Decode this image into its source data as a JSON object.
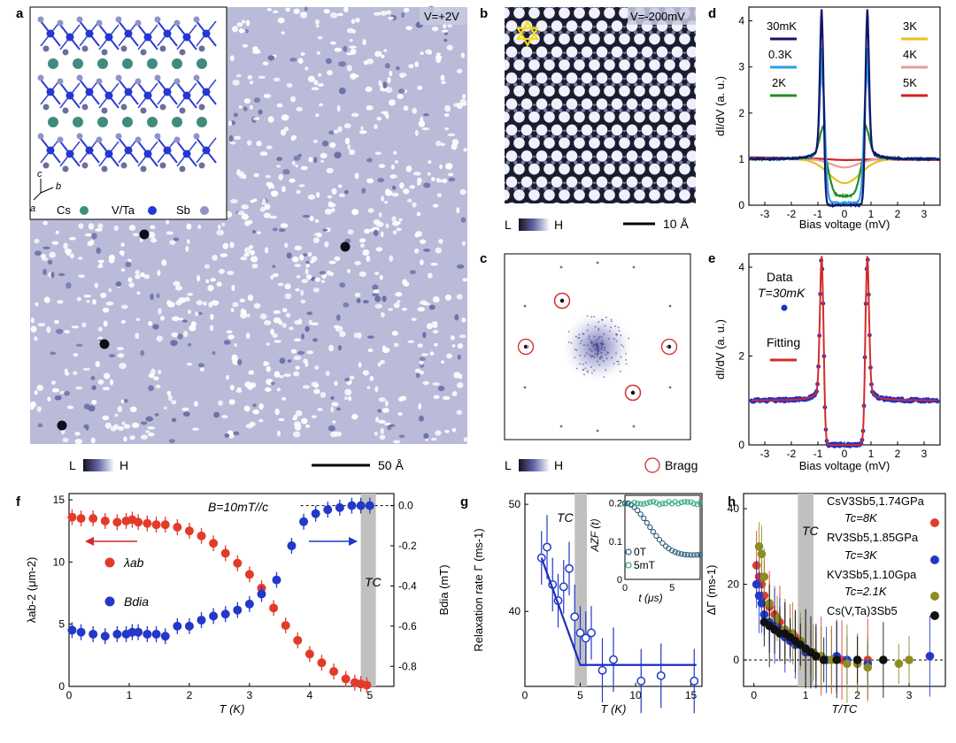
{
  "colors": {
    "cold": "#1e2a8a",
    "stm_base": "#b9bbd9",
    "stm_light": "#ffffff",
    "stm_dark": "#101012",
    "bragg": "#d42a2a",
    "fit_red": "#d42a2a",
    "data_blue": "#1f32c8",
    "gray_band": "#c0c0c0",
    "muon_teal": "#34a882",
    "muon_navy": "#2b5d7a",
    "red_pts": "#e33b2a",
    "olive_pts": "#8c8c22"
  },
  "panels": {
    "a": {
      "label": "a",
      "bias": "V=+2V",
      "scale": "50 Å",
      "L": "L",
      "H": "H",
      "inset": {
        "axes": [
          "c",
          "b",
          "a"
        ],
        "legend": [
          {
            "name": "Cs",
            "color": "#3f8c7f"
          },
          {
            "name": "V/Ta",
            "color": "#2338d2"
          },
          {
            "name": "Sb",
            "color": "#8f93c8"
          }
        ]
      }
    },
    "b": {
      "label": "b",
      "bias": "V=-200mV",
      "scale": "10 Å",
      "L": "L",
      "H": "H"
    },
    "c": {
      "label": "c",
      "L": "L",
      "H": "H",
      "bragg": "Bragg"
    },
    "d": {
      "label": "d",
      "ylabel": "dI/dV (a. u.)",
      "xlabel": "Bias voltage (mV)",
      "legend": [
        {
          "name": "30mK",
          "color": "#14156a"
        },
        {
          "name": "0.3K",
          "color": "#2ba0e6"
        },
        {
          "name": "2K",
          "color": "#248c28"
        },
        {
          "name": "3K",
          "color": "#e8c020"
        },
        {
          "name": "4K",
          "color": "#ee9999"
        },
        {
          "name": "5K",
          "color": "#d32020"
        }
      ]
    },
    "e": {
      "label": "e",
      "ylabel": "dI/dV (a. u.)",
      "xlabel": "Bias voltage (mV)",
      "data": "Data",
      "temp": "T=30mK",
      "fit": "Fitting"
    },
    "f": {
      "label": "f",
      "field": "B=10mT//c",
      "ylabel_left": "λab-2 (μm-2)",
      "ylabel_right": "Bdia (mT)",
      "xlabel": "T (K)",
      "tc": "TC",
      "lam": "λab",
      "bdia": "Bdia"
    },
    "g": {
      "label": "g",
      "ylabel": "Relaxation rate Γ (ms-1)",
      "xlabel": "T (K)",
      "tc": "TC",
      "inset": {
        "ylabel": "AZF (t)",
        "xlabel": "t (μs)",
        "legend": [
          "0T",
          "5mT"
        ]
      }
    },
    "h": {
      "label": "h",
      "ylabel": "ΔΓ (ms-1)",
      "xlabel": "T/TC",
      "tc": "TC",
      "legend": [
        "CsV3Sb5,1.74GPa",
        "Tc=8K",
        "RV3Sb5,1.85GPa",
        "Tc=3K",
        "KV3Sb5,1.10Gpa",
        "Tc=2.1K",
        "Cs(V,Ta)3Sb5"
      ]
    }
  },
  "chart_data": [
    {
      "panel": "d",
      "type": "line",
      "xlabel": "Bias voltage (mV)",
      "ylabel": "dI/dV (a. u.)",
      "xlim": [
        -3.6,
        3.6
      ],
      "ylim": [
        0,
        4.3
      ],
      "xticks": [
        -3,
        -2,
        -1,
        0,
        1,
        2,
        3
      ],
      "yticks": [
        0,
        1,
        2,
        3,
        4
      ],
      "series": [
        {
          "name": "30mK",
          "delta": 0.85,
          "peak": 4.1,
          "floor": 0.0,
          "dip": 0.0,
          "width": 0.1
        },
        {
          "name": "0.3K",
          "delta": 0.82,
          "peak": 3.3,
          "floor": 0.05,
          "dip": 0.05,
          "width": 0.13
        },
        {
          "name": "2K",
          "delta": 0.75,
          "peak": 1.7,
          "floor": 0.2,
          "dip": 0.25,
          "width": 0.25
        },
        {
          "name": "3K",
          "delta": 0.6,
          "peak": 1.2,
          "floor": 0.48,
          "dip": 0.48,
          "width": 0.45
        },
        {
          "name": "4K",
          "delta": 0.5,
          "peak": 1.05,
          "floor": 0.82,
          "dip": 0.82,
          "width": 0.6
        },
        {
          "name": "5K",
          "delta": 0.5,
          "peak": 1.0,
          "floor": 1.0,
          "dip": 0.98,
          "width": 0.6
        }
      ]
    },
    {
      "panel": "e",
      "type": "scatter",
      "xlabel": "Bias voltage (mV)",
      "ylabel": "dI/dV (a. u.)",
      "xlim": [
        -3.6,
        3.6
      ],
      "ylim": [
        0,
        4.3
      ],
      "xticks": [
        -3,
        -2,
        -1,
        0,
        1,
        2,
        3
      ],
      "yticks": [
        0,
        2,
        4
      ],
      "series": [
        {
          "name": "Data",
          "delta": 0.85,
          "peak": 4.1
        },
        {
          "name": "Fitting",
          "delta": 0.85,
          "peak": 4.1
        }
      ]
    },
    {
      "panel": "f",
      "type": "scatter",
      "xlabel": "T (K)",
      "xlim": [
        0,
        5.4
      ],
      "xticks": [
        0,
        1,
        2,
        3,
        4,
        5
      ],
      "left": {
        "ylabel": "λab-2 (μm-2)",
        "ylim": [
          0,
          15.5
        ],
        "yticks": [
          0,
          5,
          10,
          15
        ]
      },
      "right": {
        "ylabel": "Bdia (mT)",
        "ylim": [
          -0.9,
          0.06
        ],
        "yticks": [
          0.0,
          -0.2,
          -0.4,
          -0.6,
          -0.8
        ]
      },
      "series": [
        {
          "name": "λab",
          "axis": "left",
          "x": [
            0.05,
            0.2,
            0.4,
            0.6,
            0.8,
            0.95,
            1.05,
            1.15,
            1.3,
            1.45,
            1.6,
            1.8,
            2.0,
            2.2,
            2.4,
            2.6,
            2.8,
            3.0,
            3.2,
            3.4,
            3.6,
            3.8,
            4.0,
            4.2,
            4.4,
            4.6,
            4.75,
            4.85,
            4.95
          ],
          "y": [
            13.6,
            13.5,
            13.5,
            13.3,
            13.2,
            13.3,
            13.4,
            13.2,
            13.1,
            13.0,
            13.0,
            12.8,
            12.5,
            12.1,
            11.5,
            10.7,
            9.9,
            9.0,
            7.9,
            6.3,
            4.9,
            3.7,
            2.6,
            1.9,
            1.2,
            0.6,
            0.3,
            0.2,
            0.1
          ]
        },
        {
          "name": "Bdia",
          "axis": "right",
          "x": [
            0.05,
            0.2,
            0.4,
            0.6,
            0.8,
            0.95,
            1.05,
            1.15,
            1.3,
            1.45,
            1.6,
            1.8,
            2.0,
            2.2,
            2.4,
            2.6,
            2.8,
            3.0,
            3.2,
            3.45,
            3.7,
            3.9,
            4.1,
            4.3,
            4.5,
            4.7,
            4.85,
            5.0
          ],
          "y": [
            -0.62,
            -0.63,
            -0.64,
            -0.65,
            -0.64,
            -0.64,
            -0.63,
            -0.63,
            -0.64,
            -0.64,
            -0.65,
            -0.6,
            -0.6,
            -0.57,
            -0.55,
            -0.54,
            -0.52,
            -0.49,
            -0.44,
            -0.37,
            -0.2,
            -0.08,
            -0.04,
            -0.02,
            -0.01,
            0.0,
            0.0,
            0.0
          ]
        }
      ]
    },
    {
      "panel": "g",
      "type": "scatter",
      "xlabel": "T (K)",
      "ylabel": "Relaxation rate Γ (ms-1)",
      "xlim": [
        0,
        16
      ],
      "ylim": [
        33,
        51
      ],
      "xticks": [
        0,
        5,
        10,
        15
      ],
      "yticks": [
        40,
        50
      ],
      "series": [
        {
          "name": "Γ",
          "x": [
            1.5,
            2.0,
            2.5,
            3.0,
            3.5,
            4.0,
            4.5,
            5.0,
            5.5,
            6.0,
            7.0,
            8.0,
            10.5,
            12.3,
            15.3
          ],
          "y": [
            45,
            46,
            42.5,
            41,
            42.3,
            44,
            39.5,
            38,
            37.5,
            38,
            34.5,
            35.5,
            33.5,
            34,
            33.5
          ],
          "err": [
            2.5,
            3,
            2.5,
            2.5,
            2.5,
            2.5,
            3,
            2.5,
            2.5,
            2.5,
            3,
            3,
            3,
            3,
            3
          ]
        },
        {
          "name": "fit",
          "x": [
            1.5,
            5,
            15.5
          ],
          "y": [
            45,
            35,
            35
          ]
        }
      ]
    },
    {
      "panel": "g_inset",
      "type": "scatter",
      "xlabel": "t (μs)",
      "ylabel": "AZF (t)",
      "xlim": [
        0,
        8
      ],
      "ylim": [
        0,
        0.22
      ],
      "xticks": [
        0,
        5
      ],
      "yticks": [
        0,
        0.1,
        0.2
      ],
      "series": [
        {
          "name": "0T",
          "decay": "gaussian"
        },
        {
          "name": "5mT",
          "decay": "flat"
        }
      ]
    },
    {
      "panel": "h",
      "type": "scatter",
      "xlabel": "T/TC",
      "ylabel": "ΔΓ (ms-1)",
      "xlim": [
        -0.2,
        3.7
      ],
      "ylim": [
        -7,
        44
      ],
      "xticks": [
        0,
        1,
        2,
        3
      ],
      "yticks": [
        0,
        20,
        40
      ],
      "series": [
        {
          "name": "CsV3Sb5,1.74GPa",
          "x": [
            0.05,
            0.1,
            0.15,
            0.2,
            0.3,
            0.4,
            0.5,
            0.6,
            0.7,
            0.8,
            0.9,
            1.0,
            1.1,
            1.2,
            1.3,
            1.5,
            1.7,
            2.0,
            2.2
          ],
          "y": [
            25,
            22,
            20,
            17,
            14,
            12,
            10,
            8,
            7,
            6,
            5,
            3,
            2,
            1,
            1,
            0,
            0,
            -1,
            0
          ]
        },
        {
          "name": "RV3Sb5,1.85GPa",
          "x": [
            0.05,
            0.1,
            0.15,
            0.2,
            0.3,
            0.4,
            0.5,
            0.6,
            0.7,
            0.8,
            1.0,
            1.2,
            1.4,
            1.6,
            1.8,
            2.2,
            3.4
          ],
          "y": [
            20,
            17,
            15,
            12,
            10,
            9,
            8,
            6,
            5,
            4,
            2,
            1,
            0,
            1,
            0,
            -1,
            1
          ]
        },
        {
          "name": "KV3Sb5,1.10Gpa",
          "x": [
            0.1,
            0.15,
            0.2,
            0.3,
            0.45,
            0.6,
            0.75,
            0.9,
            1.0,
            1.15,
            1.3,
            1.5,
            1.8,
            2.0,
            2.2,
            2.8,
            3.0
          ],
          "y": [
            30,
            28,
            22,
            15,
            11,
            8,
            7,
            5,
            3,
            2,
            1,
            0,
            -1,
            -1,
            -2,
            -1,
            0
          ]
        },
        {
          "name": "Cs(V,Ta)3Sb5",
          "x": [
            0.2,
            0.3,
            0.4,
            0.5,
            0.6,
            0.7,
            0.8,
            0.9,
            1.0,
            1.1,
            1.2,
            1.35,
            1.6,
            2.0,
            2.5
          ],
          "y": [
            10,
            9,
            8,
            7,
            7,
            6,
            5,
            4,
            3,
            2,
            1,
            0,
            0,
            0,
            0
          ]
        }
      ]
    }
  ]
}
